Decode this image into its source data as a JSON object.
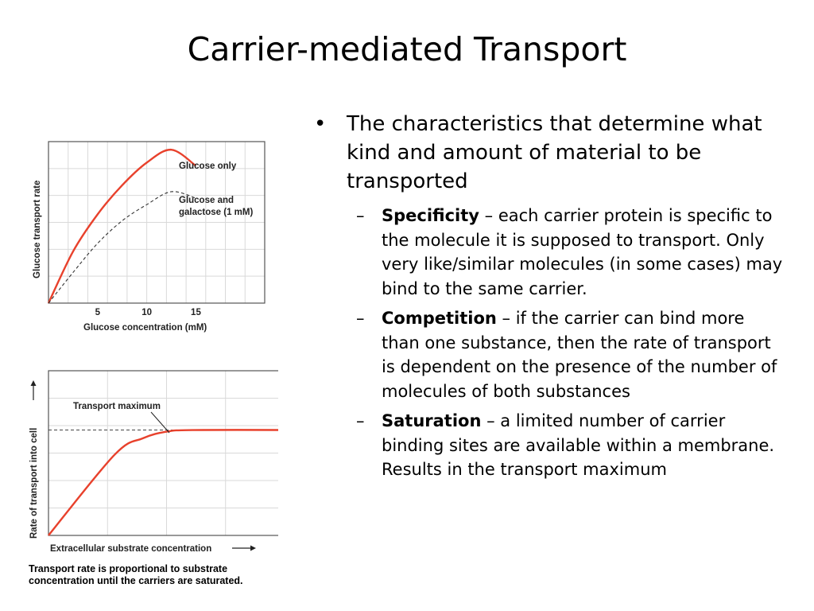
{
  "slide": {
    "title": "Carrier-mediated Transport",
    "bullet": "The characteristics that determine what kind and amount of material to be transported",
    "subpoints": [
      {
        "term": "Specificity",
        "text": " – each carrier protein is specific to the molecule it is supposed to transport. Only very like/similar molecules (in some cases) may bind to the same carrier."
      },
      {
        "term": "Competition",
        "text": " – if the carrier can bind more than one substance, then the rate of transport is dependent on the presence of the number of molecules of both substances"
      },
      {
        "term": "Saturation",
        "text": " – a limited number of carrier binding sites are available within a membrane. Results in the transport maximum"
      }
    ]
  },
  "chart_data": [
    {
      "type": "line",
      "title": "",
      "xlabel": "Glucose concentration (mM)",
      "ylabel": "Glucose transport rate",
      "x_ticks": [
        "5",
        "10",
        "15"
      ],
      "xlim": [
        0,
        22
      ],
      "ylim": [
        0,
        10
      ],
      "grid": true,
      "series": [
        {
          "name": "Glucose only",
          "style": "solid",
          "color": "#e8412c",
          "x": [
            0,
            2.5,
            5,
            7.5,
            10,
            12.5,
            15
          ],
          "y": [
            0,
            3.2,
            5.5,
            7.3,
            8.7,
            9.5,
            8.5
          ]
        },
        {
          "name": "Glucose and galactose (1 mM)",
          "style": "dashed",
          "color": "#333333",
          "x": [
            0,
            2.5,
            5,
            7.5,
            10,
            12.5,
            15
          ],
          "y": [
            0,
            1.9,
            3.7,
            5.1,
            6.1,
            6.9,
            6.5
          ]
        }
      ]
    },
    {
      "type": "line",
      "title": "",
      "xlabel": "Extracellular substrate concentration",
      "ylabel": "Rate of transport into cell",
      "annotation": "Transport maximum",
      "xlim": [
        0,
        10
      ],
      "ylim": [
        0,
        10
      ],
      "grid": true,
      "transport_max": 6.4,
      "series": [
        {
          "name": "",
          "style": "solid",
          "color": "#e8412c",
          "x": [
            0,
            2.8,
            4,
            5,
            6.1,
            10
          ],
          "y": [
            0,
            4.9,
            5.9,
            6.3,
            6.4,
            6.4
          ]
        }
      ]
    }
  ],
  "caption": "Transport rate is proportional to substrate concentration until the carriers are saturated."
}
